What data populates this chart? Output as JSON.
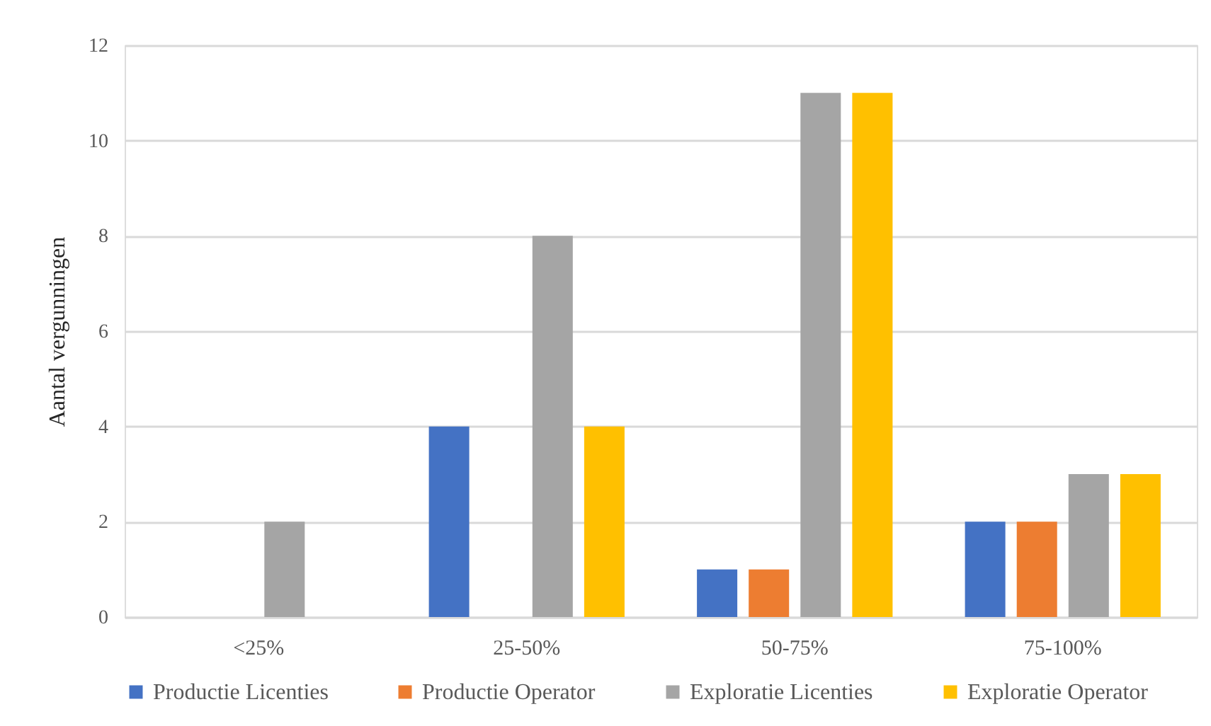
{
  "chart_data": {
    "type": "bar",
    "ylabel": "Aantal vergunningen",
    "categories": [
      "<25%",
      "25-50%",
      "50-75%",
      "75-100%"
    ],
    "series": [
      {
        "name": "Productie Licenties",
        "color": "#4472c4",
        "values": [
          null,
          4,
          1,
          2
        ]
      },
      {
        "name": "Productie Operator",
        "color": "#ed7d31",
        "values": [
          null,
          null,
          1,
          2
        ]
      },
      {
        "name": "Exploratie Licenties",
        "color": "#a5a5a5",
        "values": [
          2,
          8,
          11,
          3
        ]
      },
      {
        "name": "Exploratie Operator",
        "color": "#ffc000",
        "values": [
          null,
          4,
          11,
          3
        ]
      }
    ],
    "ylim": [
      0,
      12
    ],
    "yticks": [
      0,
      2,
      4,
      6,
      8,
      10,
      12
    ],
    "grid": "y",
    "legend": "bottom"
  }
}
